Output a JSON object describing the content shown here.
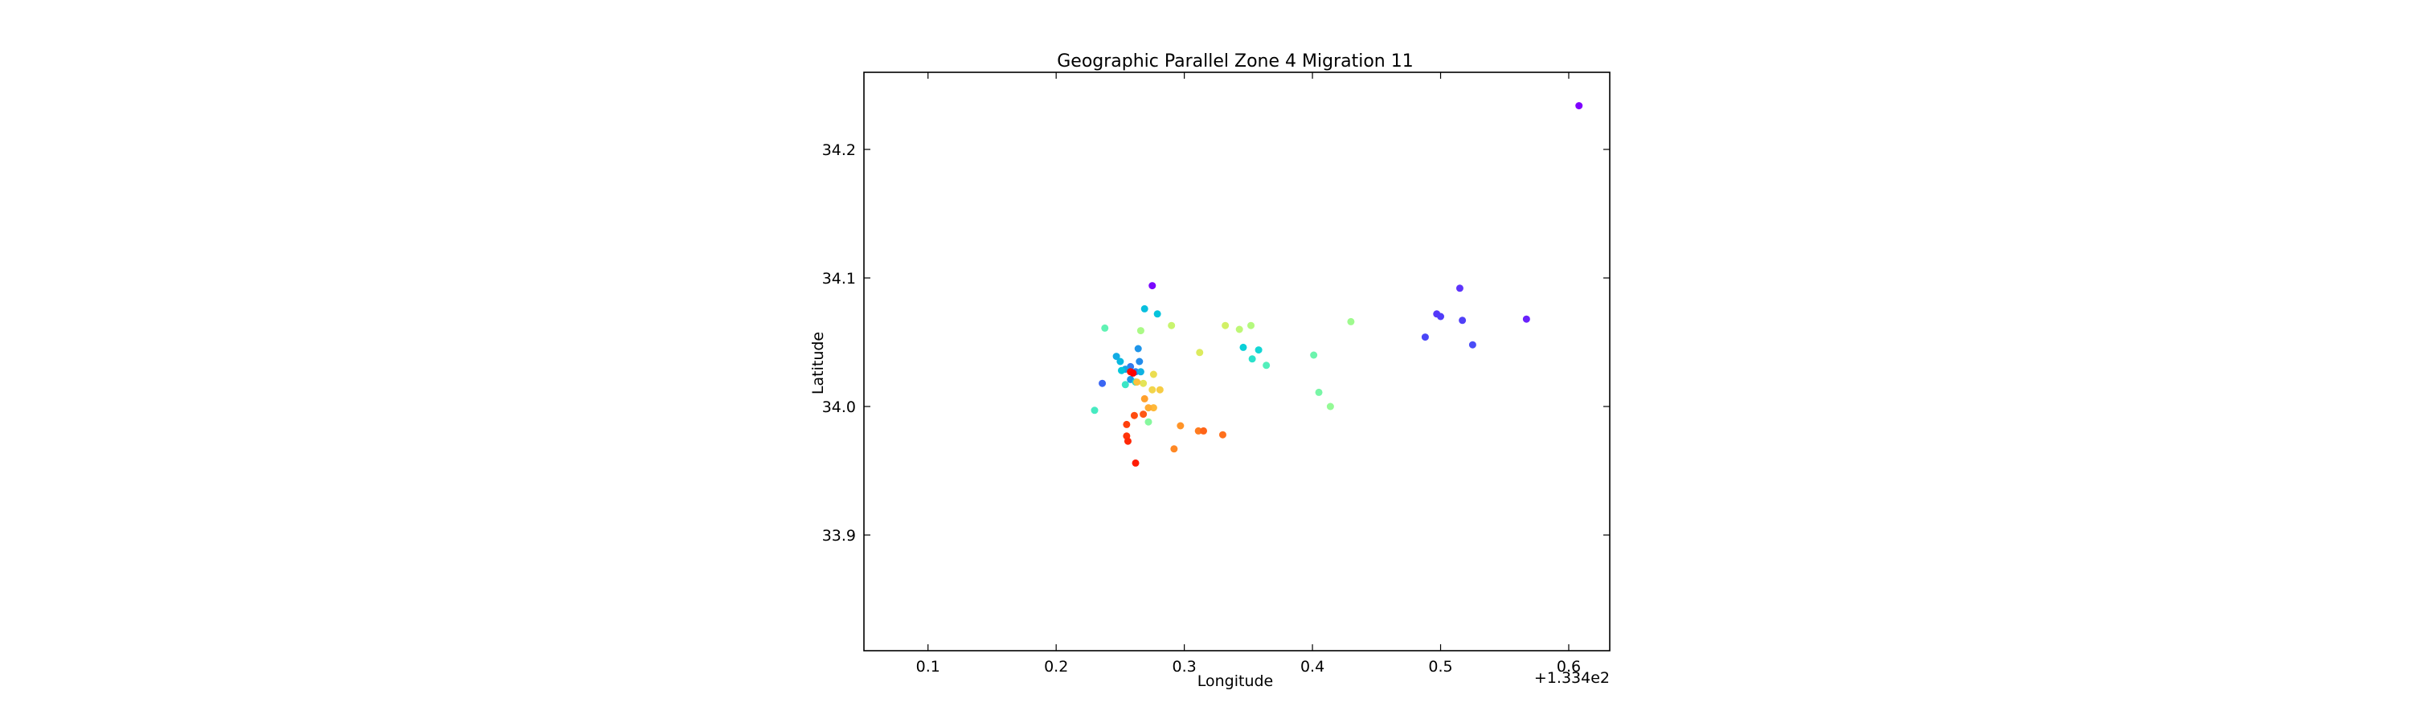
{
  "chart_data": {
    "type": "scatter",
    "title": "Geographic Parallel Zone 4 Migration 11",
    "xlabel": "Longitude",
    "ylabel": "Latitude",
    "x_offset_label": "+1.334e2",
    "xlim": [
      0.05,
      0.632
    ],
    "ylim": [
      33.81,
      34.26
    ],
    "xticks": [
      0.1,
      0.2,
      0.3,
      0.4,
      0.5,
      0.6
    ],
    "xtick_labels": [
      "0.1",
      "0.2",
      "0.3",
      "0.4",
      "0.5",
      "0.6"
    ],
    "yticks": [
      33.9,
      34.0,
      34.1,
      34.2
    ],
    "ytick_labels": [
      "33.9",
      "34.0",
      "34.1",
      "34.2"
    ],
    "grid": false,
    "legend": "none",
    "colormap": "rainbow",
    "points": [
      {
        "x": 0.608,
        "y": 34.234,
        "color": "#7f00ff"
      },
      {
        "x": 0.275,
        "y": 34.094,
        "color": "#7a07fe"
      },
      {
        "x": 0.515,
        "y": 34.092,
        "color": "#5d34fb"
      },
      {
        "x": 0.567,
        "y": 34.068,
        "color": "#6a22fc"
      },
      {
        "x": 0.497,
        "y": 34.072,
        "color": "#5538f9"
      },
      {
        "x": 0.5,
        "y": 34.07,
        "color": "#503cf9"
      },
      {
        "x": 0.517,
        "y": 34.067,
        "color": "#5040f8"
      },
      {
        "x": 0.488,
        "y": 34.054,
        "color": "#4a46f7"
      },
      {
        "x": 0.525,
        "y": 34.048,
        "color": "#4a4cf7"
      },
      {
        "x": 0.236,
        "y": 34.018,
        "color": "#3a66f3"
      },
      {
        "x": 0.258,
        "y": 34.031,
        "color": "#2f7aef"
      },
      {
        "x": 0.262,
        "y": 34.027,
        "color": "#2b80ee"
      },
      {
        "x": 0.265,
        "y": 34.035,
        "color": "#228ceb"
      },
      {
        "x": 0.264,
        "y": 34.045,
        "color": "#1e95e9"
      },
      {
        "x": 0.258,
        "y": 34.021,
        "color": "#1b99e8"
      },
      {
        "x": 0.254,
        "y": 34.029,
        "color": "#16a3e6"
      },
      {
        "x": 0.247,
        "y": 34.039,
        "color": "#12ace4"
      },
      {
        "x": 0.266,
        "y": 34.027,
        "color": "#0eb2e2"
      },
      {
        "x": 0.25,
        "y": 34.035,
        "color": "#0ab8e0"
      },
      {
        "x": 0.269,
        "y": 34.076,
        "color": "#08bfde"
      },
      {
        "x": 0.279,
        "y": 34.072,
        "color": "#05c4dc"
      },
      {
        "x": 0.251,
        "y": 34.028,
        "color": "#04c8db"
      },
      {
        "x": 0.346,
        "y": 34.046,
        "color": "#0ad0d8"
      },
      {
        "x": 0.358,
        "y": 34.044,
        "color": "#14d6d4"
      },
      {
        "x": 0.262,
        "y": 34.019,
        "color": "#1edcd0"
      },
      {
        "x": 0.353,
        "y": 34.037,
        "color": "#2ae1cb"
      },
      {
        "x": 0.254,
        "y": 34.017,
        "color": "#3ae6c6"
      },
      {
        "x": 0.23,
        "y": 33.997,
        "color": "#46eac1"
      },
      {
        "x": 0.364,
        "y": 34.032,
        "color": "#52efbb"
      },
      {
        "x": 0.238,
        "y": 34.061,
        "color": "#60f2b4"
      },
      {
        "x": 0.401,
        "y": 34.04,
        "color": "#6cf4ad"
      },
      {
        "x": 0.405,
        "y": 34.011,
        "color": "#78f6a6"
      },
      {
        "x": 0.272,
        "y": 33.988,
        "color": "#86f89e"
      },
      {
        "x": 0.414,
        "y": 34.0,
        "color": "#94fa96"
      },
      {
        "x": 0.43,
        "y": 34.066,
        "color": "#9efa8e"
      },
      {
        "x": 0.266,
        "y": 34.059,
        "color": "#aafa86"
      },
      {
        "x": 0.352,
        "y": 34.063,
        "color": "#b4f97e"
      },
      {
        "x": 0.343,
        "y": 34.06,
        "color": "#bef776"
      },
      {
        "x": 0.29,
        "y": 34.063,
        "color": "#c8f46e"
      },
      {
        "x": 0.332,
        "y": 34.063,
        "color": "#d2f066"
      },
      {
        "x": 0.312,
        "y": 34.042,
        "color": "#dceb5e"
      },
      {
        "x": 0.268,
        "y": 34.018,
        "color": "#e4e456"
      },
      {
        "x": 0.276,
        "y": 34.025,
        "color": "#ebdd50"
      },
      {
        "x": 0.275,
        "y": 34.013,
        "color": "#f2d54a"
      },
      {
        "x": 0.281,
        "y": 34.013,
        "color": "#f7cc44"
      },
      {
        "x": 0.263,
        "y": 34.019,
        "color": "#fbc23e"
      },
      {
        "x": 0.276,
        "y": 33.999,
        "color": "#ffb838"
      },
      {
        "x": 0.272,
        "y": 33.999,
        "color": "#ffac32"
      },
      {
        "x": 0.269,
        "y": 34.006,
        "color": "#ffa02c"
      },
      {
        "x": 0.297,
        "y": 33.985,
        "color": "#ff9428"
      },
      {
        "x": 0.292,
        "y": 33.967,
        "color": "#ff8824"
      },
      {
        "x": 0.311,
        "y": 33.981,
        "color": "#ff7c20"
      },
      {
        "x": 0.33,
        "y": 33.978,
        "color": "#ff701c"
      },
      {
        "x": 0.315,
        "y": 33.981,
        "color": "#ff6418"
      },
      {
        "x": 0.268,
        "y": 33.994,
        "color": "#ff5814"
      },
      {
        "x": 0.261,
        "y": 33.993,
        "color": "#ff4c10"
      },
      {
        "x": 0.255,
        "y": 33.986,
        "color": "#ff400c"
      },
      {
        "x": 0.255,
        "y": 33.977,
        "color": "#ff3408"
      },
      {
        "x": 0.256,
        "y": 33.973,
        "color": "#ff2806"
      },
      {
        "x": 0.262,
        "y": 33.956,
        "color": "#ff1c04"
      },
      {
        "x": 0.258,
        "y": 34.027,
        "color": "#ff1002"
      },
      {
        "x": 0.26,
        "y": 34.026,
        "color": "#ff0000"
      }
    ]
  }
}
